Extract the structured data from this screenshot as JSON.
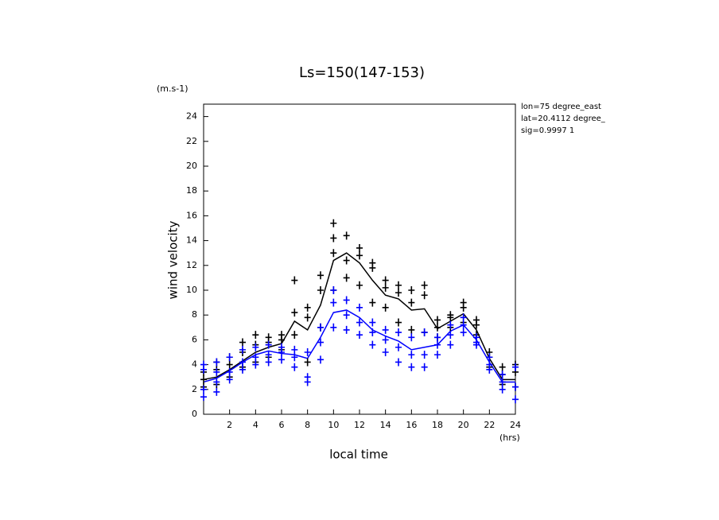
{
  "chart_data": {
    "type": "scatter",
    "title": "Ls=150(147-153)",
    "x_label": "local time",
    "y_label": "wind velocity",
    "x_unit": "(hrs)",
    "y_unit": "(m.s-1)",
    "annotations": [
      "lon=75 degree_east",
      "lat=20.4112 degree_",
      "sig=0.9997 1"
    ],
    "xlim": [
      0,
      24
    ],
    "ylim": [
      0,
      25
    ],
    "xticks": [
      2,
      4,
      6,
      8,
      10,
      12,
      14,
      16,
      18,
      20,
      22,
      24
    ],
    "yticks": [
      0,
      2,
      4,
      6,
      8,
      10,
      12,
      14,
      16,
      18,
      20,
      22,
      24
    ],
    "series": [
      {
        "kind": "line",
        "color": "#000000",
        "x": [
          0,
          1,
          2,
          3,
          4,
          5,
          6,
          7,
          8,
          9,
          10,
          11,
          12,
          13,
          14,
          15,
          16,
          17,
          18,
          19,
          20,
          21,
          22,
          23,
          24
        ],
        "values": [
          2.8,
          3.0,
          3.6,
          4.3,
          5.0,
          5.4,
          5.7,
          7.5,
          6.8,
          8.8,
          12.4,
          13.0,
          12.2,
          10.8,
          9.6,
          9.3,
          8.4,
          8.5,
          6.9,
          7.5,
          8.1,
          6.8,
          4.5,
          2.8,
          2.8
        ]
      },
      {
        "kind": "line",
        "color": "#0000ff",
        "x": [
          0,
          1,
          2,
          3,
          4,
          5,
          6,
          7,
          8,
          9,
          10,
          11,
          12,
          13,
          14,
          15,
          16,
          17,
          18,
          19,
          20,
          21,
          22,
          23,
          24
        ],
        "values": [
          2.6,
          2.9,
          3.5,
          4.2,
          4.8,
          5.1,
          4.9,
          4.8,
          4.5,
          6.2,
          8.2,
          8.4,
          7.8,
          6.8,
          6.3,
          5.9,
          5.2,
          5.4,
          5.6,
          6.7,
          7.2,
          6.0,
          4.2,
          2.6,
          2.6
        ]
      },
      {
        "kind": "points",
        "color": "#000000",
        "x": [
          0,
          0,
          0,
          1,
          1,
          1,
          2,
          2,
          2,
          3,
          3,
          3,
          4,
          4,
          4,
          5,
          5,
          5,
          6,
          6,
          6,
          7,
          7,
          7,
          8,
          8,
          8,
          9,
          9,
          9,
          10,
          10,
          10,
          10,
          11,
          11,
          11,
          12,
          12,
          12,
          13,
          13,
          13,
          14,
          14,
          14,
          15,
          15,
          15,
          16,
          16,
          16,
          17,
          17,
          17,
          18,
          18,
          18,
          19,
          19,
          19,
          20,
          20,
          20,
          21,
          21,
          21,
          22,
          22,
          22,
          23,
          23,
          23,
          24,
          24,
          24
        ],
        "values": [
          2.2,
          3.4,
          2.8,
          2.4,
          3.6,
          4.2,
          3.0,
          4.0,
          4.6,
          3.8,
          5.0,
          5.8,
          4.2,
          5.6,
          6.4,
          4.6,
          5.8,
          6.2,
          5.2,
          6.0,
          6.4,
          6.4,
          8.2,
          10.8,
          4.2,
          7.8,
          8.6,
          7.0,
          10.0,
          11.2,
          10.0,
          13.0,
          14.2,
          15.4,
          11.0,
          12.4,
          14.4,
          10.4,
          12.8,
          13.4,
          9.0,
          11.8,
          12.2,
          8.6,
          10.2,
          10.8,
          7.4,
          9.8,
          10.4,
          6.8,
          9.0,
          10.0,
          6.6,
          9.6,
          10.4,
          6.2,
          7.0,
          7.6,
          7.0,
          7.8,
          8.0,
          7.4,
          8.6,
          9.0,
          6.4,
          7.2,
          7.6,
          3.8,
          4.6,
          5.0,
          2.4,
          3.2,
          3.8,
          2.2,
          3.4,
          4.0
        ]
      },
      {
        "kind": "points",
        "color": "#0000ff",
        "x": [
          0,
          0,
          0,
          0,
          1,
          1,
          1,
          1,
          2,
          2,
          2,
          3,
          3,
          3,
          4,
          4,
          4,
          5,
          5,
          5,
          6,
          6,
          6,
          7,
          7,
          7,
          8,
          8,
          8,
          9,
          9,
          9,
          10,
          10,
          10,
          11,
          11,
          11,
          12,
          12,
          12,
          13,
          13,
          13,
          14,
          14,
          14,
          15,
          15,
          15,
          16,
          16,
          16,
          17,
          17,
          17,
          18,
          18,
          18,
          19,
          19,
          19,
          20,
          20,
          20,
          21,
          21,
          21,
          22,
          22,
          22,
          23,
          23,
          23,
          24,
          24,
          24
        ],
        "values": [
          1.4,
          2.0,
          3.6,
          4.0,
          1.8,
          2.6,
          3.4,
          4.2,
          2.8,
          3.4,
          4.6,
          3.6,
          4.2,
          5.2,
          4.0,
          4.6,
          5.4,
          4.2,
          4.8,
          5.6,
          4.4,
          5.0,
          5.4,
          3.8,
          4.6,
          5.2,
          2.6,
          3.0,
          5.0,
          4.4,
          5.8,
          7.0,
          7.0,
          9.0,
          10.0,
          6.8,
          8.0,
          9.2,
          6.4,
          7.4,
          8.6,
          5.6,
          6.6,
          7.4,
          5.0,
          6.0,
          6.8,
          4.2,
          5.4,
          6.6,
          3.8,
          4.8,
          6.2,
          3.8,
          4.8,
          6.6,
          4.8,
          5.6,
          6.2,
          5.6,
          6.4,
          7.2,
          6.6,
          7.2,
          7.8,
          5.6,
          5.8,
          6.2,
          3.6,
          4.0,
          4.6,
          2.0,
          2.6,
          3.2,
          1.2,
          2.2,
          3.8
        ]
      }
    ]
  }
}
